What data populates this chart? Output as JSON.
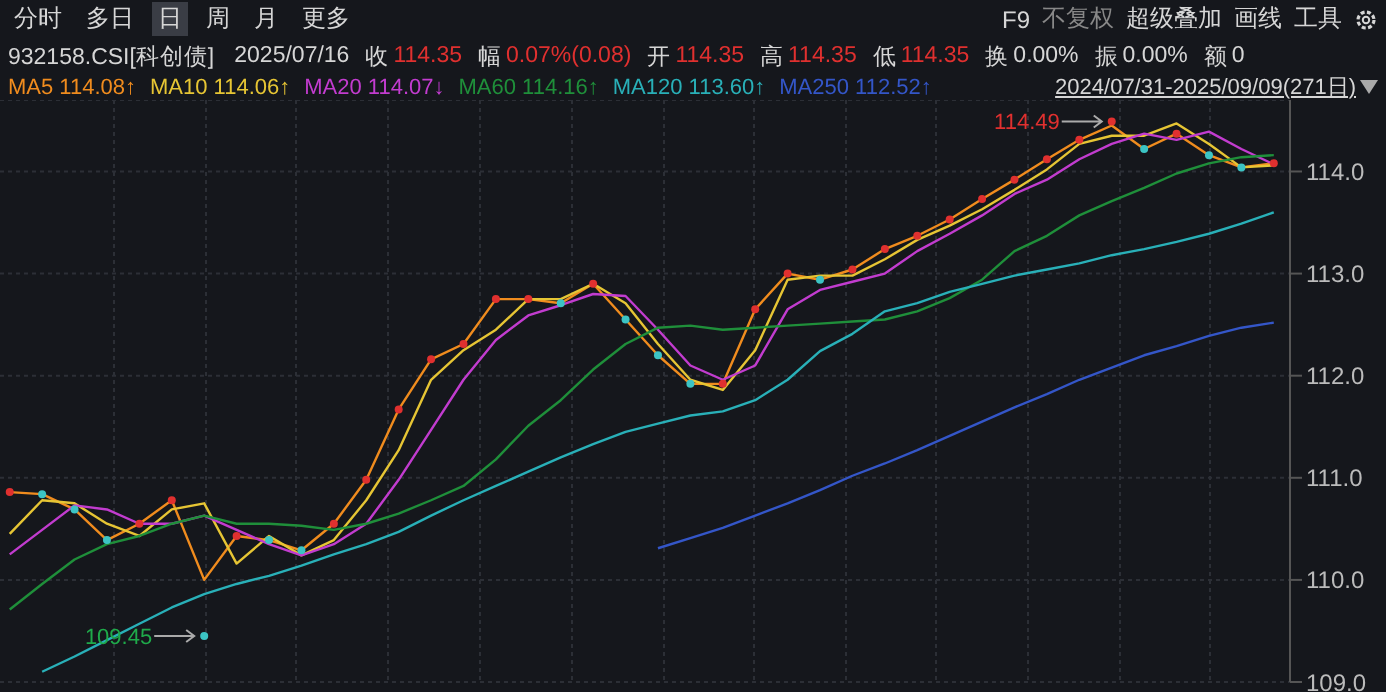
{
  "chart_data": {
    "type": "line",
    "title": "932158.CSI[科创债]",
    "annotations": [
      "分时",
      "多日",
      "日",
      "周",
      "月",
      "更多",
      "F9",
      "不复权",
      "超级叠加",
      "画线",
      "工具",
      "2025/07/16",
      "收",
      "114.35",
      "幅",
      "0.07%(0.08)",
      "开",
      "114.35",
      "高",
      "114.35",
      "低",
      "114.35",
      "换",
      "0.00%",
      "振",
      "0.00%",
      "额",
      "0",
      "2024/07/31-2025/09/09(271日)",
      "114.49",
      "109.45"
    ],
    "categories": [
      null,
      null,
      null,
      null,
      null,
      null,
      null,
      null,
      null,
      null,
      null,
      null,
      null,
      null,
      null,
      null,
      null,
      null,
      null,
      null,
      null,
      null,
      null,
      null,
      null,
      null,
      null,
      null,
      null,
      null,
      null,
      null,
      null,
      null,
      null,
      null,
      null,
      null,
      null,
      null
    ],
    "series": [
      {
        "type": "scatter",
        "marker": "circle",
        "colors": [
          "#e0302f",
          "#3cc4c4",
          "#3cc4c4",
          "#3cc4c4",
          "#e0302f",
          "#e0302f",
          "#3cc4c4",
          "#e0302f",
          "#3cc4c4",
          "#3cc4c4",
          "#e0302f",
          "#e0302f",
          "#e0302f",
          "#e0302f",
          "#e0302f",
          "#e0302f",
          "#e0302f",
          "#3cc4c4",
          "#e0302f",
          "#3cc4c4",
          "#3cc4c4",
          "#3cc4c4",
          "#e0302f",
          "#e0302f",
          "#e0302f",
          "#3cc4c4",
          "#e0302f",
          "#e0302f",
          "#e0302f",
          "#e0302f",
          "#e0302f",
          "#e0302f",
          "#e0302f",
          "#e0302f",
          "#e0302f",
          "#3cc4c4",
          "#e0302f",
          "#3cc4c4",
          "#3cc4c4",
          "#e0302f"
        ],
        "values": [
          110.86,
          110.84,
          110.69,
          110.39,
          110.55,
          110.78,
          109.45,
          110.43,
          110.39,
          110.29,
          110.55,
          110.98,
          111.67,
          112.16,
          112.31,
          112.75,
          112.75,
          112.71,
          112.9,
          112.55,
          112.2,
          111.92,
          111.92,
          112.65,
          113.0,
          112.94,
          113.04,
          113.24,
          113.37,
          113.53,
          113.73,
          113.92,
          114.12,
          114.31,
          114.49,
          114.22,
          114.37,
          114.16,
          114.04,
          114.08
        ]
      },
      {
        "name": "MA5 114.08↑",
        "color": "#f08c1e",
        "values": [
          110.86,
          110.84,
          110.69,
          110.39,
          110.55,
          110.78,
          110.0,
          110.43,
          110.39,
          110.29,
          110.55,
          110.98,
          111.67,
          112.16,
          112.31,
          112.75,
          112.75,
          112.71,
          112.9,
          112.55,
          112.2,
          111.92,
          111.92,
          112.65,
          113.0,
          112.94,
          113.04,
          113.24,
          113.37,
          113.53,
          113.73,
          113.92,
          114.12,
          114.31,
          114.45,
          114.22,
          114.37,
          114.16,
          114.04,
          114.08
        ]
      },
      {
        "name": "MA10 114.06↑",
        "color": "#e6c534",
        "values": [
          110.45,
          110.78,
          110.75,
          110.55,
          110.43,
          110.69,
          110.75,
          110.16,
          110.43,
          110.24,
          110.39,
          110.78,
          111.27,
          111.96,
          112.25,
          112.45,
          112.75,
          112.75,
          112.9,
          112.71,
          112.31,
          111.96,
          111.86,
          112.25,
          112.94,
          112.98,
          112.98,
          113.14,
          113.33,
          113.47,
          113.63,
          113.82,
          114.02,
          114.27,
          114.35,
          114.35,
          114.47,
          114.27,
          114.04,
          114.06
        ]
      },
      {
        "name": "MA20 114.07↓",
        "color": "#c23ccf",
        "values": [
          110.25,
          110.49,
          110.73,
          110.69,
          110.55,
          110.55,
          110.63,
          110.49,
          110.35,
          110.24,
          110.35,
          110.55,
          110.98,
          111.47,
          111.96,
          112.35,
          112.59,
          112.69,
          112.8,
          112.78,
          112.45,
          112.1,
          111.96,
          112.1,
          112.65,
          112.84,
          112.92,
          113.0,
          113.22,
          113.39,
          113.57,
          113.78,
          113.92,
          114.12,
          114.27,
          114.37,
          114.31,
          114.39,
          114.22,
          114.07
        ]
      },
      {
        "name": "MA60 114.16↑",
        "color": "#1f8f3a",
        "values": [
          109.71,
          109.96,
          110.2,
          110.35,
          110.43,
          110.55,
          110.63,
          110.55,
          110.55,
          110.53,
          110.49,
          110.55,
          110.65,
          110.78,
          110.92,
          111.18,
          111.51,
          111.76,
          112.06,
          112.31,
          112.47,
          112.49,
          112.45,
          112.47,
          112.49,
          112.51,
          112.53,
          112.55,
          112.63,
          112.76,
          112.94,
          113.22,
          113.37,
          113.57,
          113.71,
          113.84,
          113.98,
          114.08,
          114.14,
          114.16
        ]
      },
      {
        "name": "MA120 113.60↑",
        "color": "#29b0b8",
        "values": [
          null,
          109.1,
          109.25,
          109.41,
          109.57,
          109.73,
          109.86,
          109.96,
          110.04,
          110.14,
          110.25,
          110.35,
          110.47,
          110.63,
          110.78,
          110.92,
          111.06,
          111.2,
          111.33,
          111.45,
          111.53,
          111.61,
          111.65,
          111.76,
          111.96,
          112.24,
          112.41,
          112.63,
          112.71,
          112.82,
          112.9,
          112.98,
          113.04,
          113.1,
          113.18,
          113.24,
          113.31,
          113.39,
          113.49,
          113.6
        ]
      },
      {
        "name": "MA250 112.52↑",
        "color": "#3456c8",
        "values": [
          null,
          null,
          null,
          null,
          null,
          null,
          null,
          null,
          null,
          null,
          null,
          null,
          null,
          null,
          null,
          null,
          null,
          null,
          null,
          null,
          110.31,
          110.41,
          110.51,
          110.63,
          110.75,
          110.88,
          111.02,
          111.14,
          111.27,
          111.41,
          111.55,
          111.69,
          111.82,
          111.96,
          112.08,
          112.2,
          112.29,
          112.39,
          112.47,
          112.52
        ]
      }
    ],
    "ylim": [
      109,
      114.7
    ],
    "yticks": [
      {
        "value": 109,
        "label": "109.0"
      },
      {
        "value": 110,
        "label": "110.0"
      },
      {
        "value": 111,
        "label": "111.0"
      },
      {
        "value": 112,
        "label": "112.0"
      },
      {
        "value": 113,
        "label": "113.0"
      },
      {
        "value": 114,
        "label": "114.0"
      }
    ],
    "grid": true,
    "legend": "top left",
    "marker": "none",
    "line_style": "solid"
  }
}
